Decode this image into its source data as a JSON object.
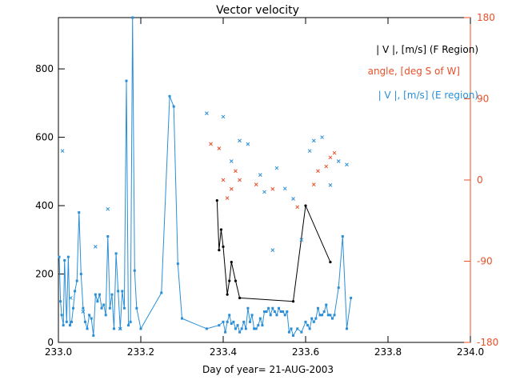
{
  "chart_data": {
    "type": "line",
    "title": "Vector velocity",
    "xlabel": "Day of year= 21-AUG-2003",
    "xlim": [
      233.0,
      234.0
    ],
    "ylim_left": [
      0,
      950
    ],
    "ylim_right": [
      -180,
      180
    ],
    "x_ticks": [
      233.0,
      233.2,
      233.4,
      233.6,
      233.8,
      234.0
    ],
    "x_tick_labels": [
      "233.0",
      "233.2",
      "233.4",
      "233.6",
      "233.8",
      "234.0"
    ],
    "y_ticks_left": [
      0,
      200,
      400,
      600,
      800
    ],
    "y_tick_labels_left": [
      "0",
      "200",
      "400",
      "600",
      "800"
    ],
    "y_ticks_right": [
      -180,
      -90,
      0,
      90,
      180
    ],
    "y_tick_labels_right": [
      "-180",
      "-90",
      "0",
      "90",
      "180"
    ],
    "legend_position": "top-right",
    "colors": {
      "f_region": "#000000",
      "angle": "#e8502a",
      "e_region": "#2a8fd6"
    },
    "legend": [
      {
        "label": "| V |, [m/s] (F Region)",
        "color": "#000000"
      },
      {
        "label": "angle, [deg S of W]",
        "color": "#e8502a"
      },
      {
        "label": "| V |, [m/s] (E region)",
        "color": "#2a8fd6"
      }
    ],
    "series": [
      {
        "name": "| V |, [m/s] (E region)",
        "axis": "left",
        "style": "line-square",
        "color": "#2a8fd6",
        "x": [
          233.002,
          233.005,
          233.008,
          233.012,
          233.015,
          233.02,
          233.024,
          233.028,
          233.032,
          233.036,
          233.04,
          233.045,
          233.05,
          233.055,
          233.06,
          233.065,
          233.07,
          233.075,
          233.08,
          233.085,
          233.09,
          233.095,
          233.1,
          233.105,
          233.11,
          233.115,
          233.12,
          233.125,
          233.13,
          233.135,
          233.14,
          233.145,
          233.15,
          233.155,
          233.16,
          233.165,
          233.17,
          233.175,
          233.18,
          233.185,
          233.19,
          233.2,
          233.25,
          233.27,
          233.28,
          233.29,
          233.3,
          233.36,
          233.39,
          233.4,
          233.405,
          233.41,
          233.415,
          233.42,
          233.425,
          233.43,
          233.435,
          233.44,
          233.445,
          233.45,
          233.455,
          233.46,
          233.465,
          233.47,
          233.475,
          233.48,
          233.485,
          233.49,
          233.495,
          233.5,
          233.505,
          233.51,
          233.515,
          233.52,
          233.525,
          233.53,
          233.535,
          233.54,
          233.545,
          233.55,
          233.555,
          233.56,
          233.565,
          233.57,
          233.58,
          233.59,
          233.6,
          233.605,
          233.61,
          233.615,
          233.62,
          233.625,
          233.63,
          233.635,
          233.64,
          233.645,
          233.65,
          233.655,
          233.66,
          233.665,
          233.67,
          233.68,
          233.69,
          233.7,
          233.71
        ],
        "values": [
          250,
          120,
          80,
          50,
          240,
          60,
          250,
          50,
          60,
          100,
          150,
          180,
          380,
          200,
          100,
          60,
          40,
          80,
          70,
          20,
          140,
          120,
          140,
          100,
          110,
          80,
          310,
          100,
          140,
          40,
          260,
          150,
          40,
          150,
          100,
          765,
          50,
          60,
          950,
          210,
          100,
          40,
          145,
          720,
          690,
          230,
          70,
          40,
          50,
          60,
          30,
          60,
          80,
          55,
          60,
          40,
          50,
          30,
          40,
          60,
          40,
          100,
          60,
          80,
          40,
          40,
          50,
          70,
          50,
          90,
          90,
          100,
          80,
          100,
          90,
          80,
          100,
          90,
          90,
          80,
          90,
          30,
          40,
          20,
          40,
          30,
          60,
          50,
          40,
          70,
          60,
          70,
          100,
          80,
          80,
          90,
          110,
          80,
          80,
          70,
          80,
          160,
          310,
          40,
          130
        ]
      },
      {
        "name": "| V |, [m/s] (F Region)",
        "axis": "left",
        "style": "line-dot",
        "color": "#000000",
        "x": [
          233.385,
          233.39,
          233.395,
          233.4,
          233.41,
          233.415,
          233.42,
          233.43,
          233.44,
          233.57,
          233.6,
          233.66
        ],
        "values": [
          415,
          270,
          330,
          280,
          140,
          180,
          235,
          180,
          130,
          120,
          400,
          235
        ]
      },
      {
        "name": "angle, [deg S of W]",
        "axis": "right",
        "style": "x",
        "color": "#e8502a",
        "x": [
          233.37,
          233.39,
          233.4,
          233.41,
          233.42,
          233.43,
          233.44,
          233.48,
          233.52,
          233.58,
          233.62,
          233.63,
          233.65,
          233.66,
          233.67
        ],
        "values": [
          40,
          35,
          0,
          -20,
          -10,
          10,
          0,
          -5,
          -10,
          -30,
          -5,
          10,
          15,
          25,
          30
        ]
      },
      {
        "name": "| V |, [m/s] (E region) scatter",
        "axis": "left",
        "style": "x",
        "color": "#2a8fd6",
        "x": [
          233.01,
          233.03,
          233.06,
          233.09,
          233.12,
          233.15,
          233.36,
          233.4,
          233.42,
          233.44,
          233.46,
          233.49,
          233.5,
          233.52,
          233.53,
          233.55,
          233.57,
          233.59,
          233.61,
          233.62,
          233.64,
          233.66,
          233.68,
          233.7
        ],
        "values": [
          560,
          130,
          90,
          280,
          390,
          40,
          670,
          660,
          530,
          590,
          580,
          490,
          440,
          270,
          510,
          450,
          420,
          300,
          560,
          590,
          600,
          460,
          530,
          520
        ]
      }
    ]
  }
}
